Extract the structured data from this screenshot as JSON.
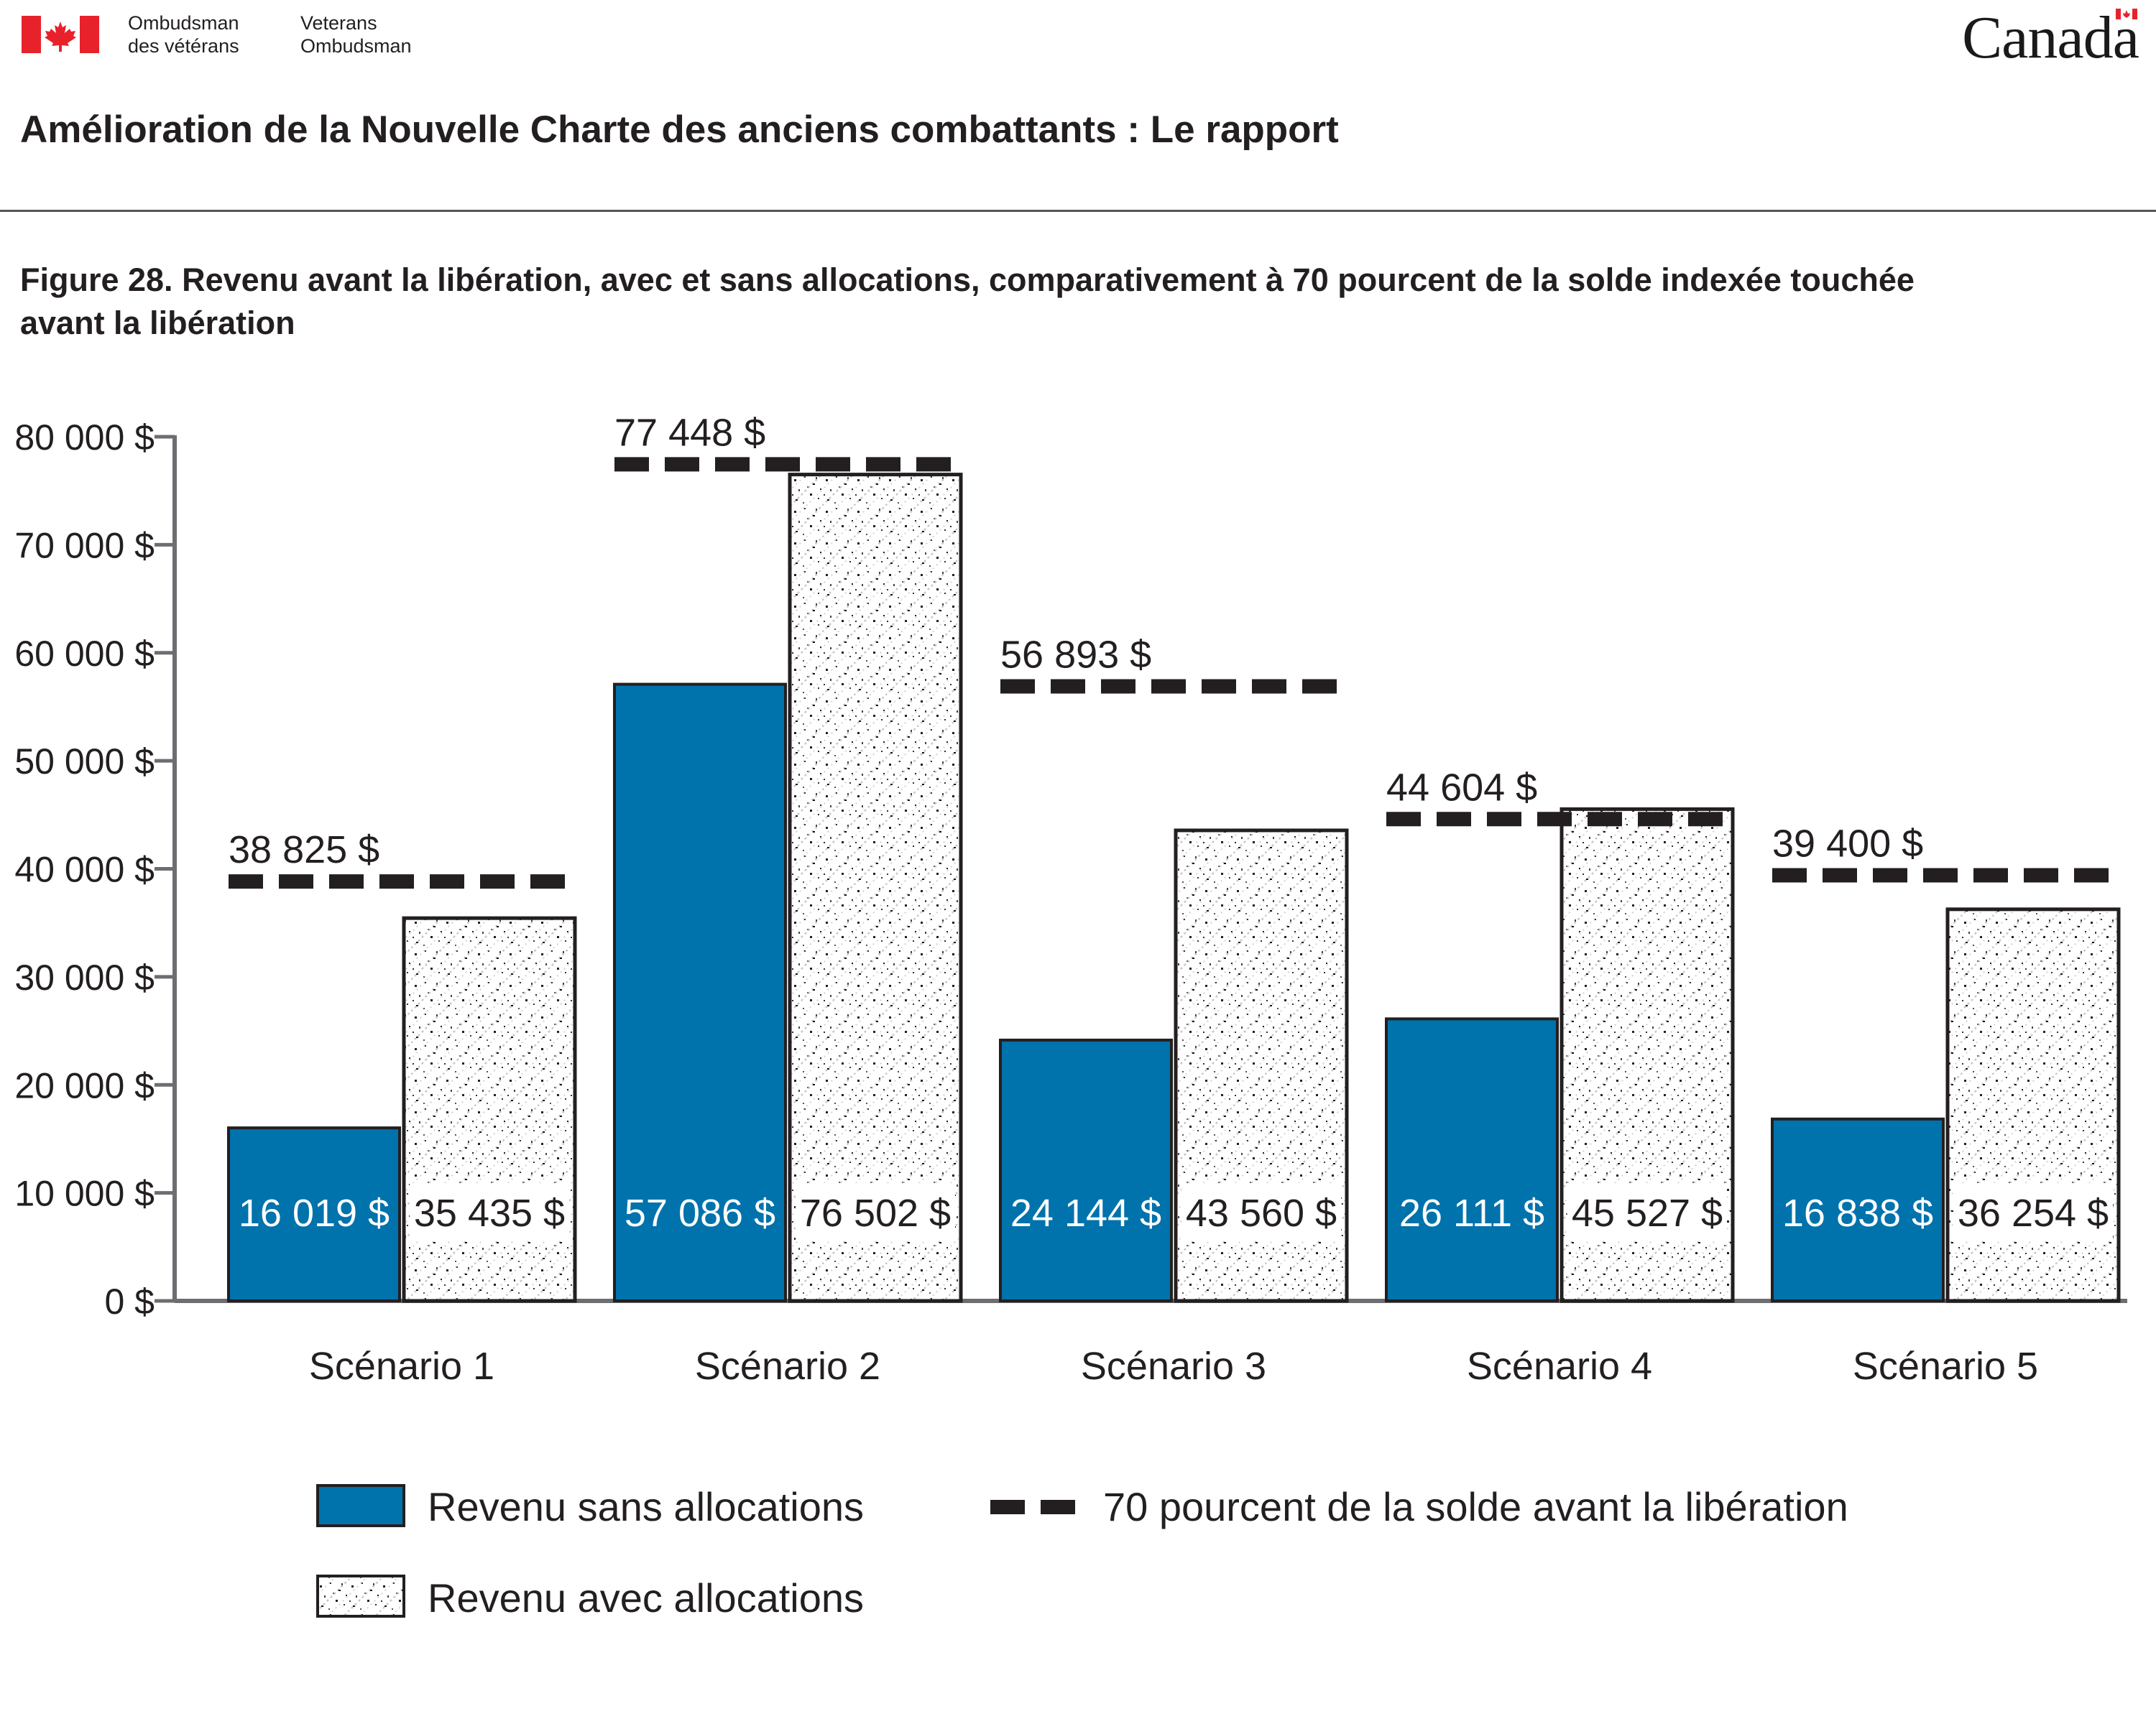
{
  "header": {
    "org_fr_line1": "Ombudsman",
    "org_fr_line2": "des vétérans",
    "org_en_line1": "Veterans",
    "org_en_line2": "Ombudsman",
    "wordmark": "Canada",
    "report_title": "Amélioration de la Nouvelle Charte des anciens combattants : Le rapport"
  },
  "figure_title": "Figure 28. Revenu avant la libération, avec et sans allocations, comparativement à 70 pourcent de la solde indexée touchée avant la libération",
  "colors": {
    "blue_bar": "#0072ac",
    "flag_red": "#e8222b",
    "axis": "#6d6e71",
    "text": "#231f20",
    "dash": "#231f20"
  },
  "chart_data": {
    "type": "bar",
    "categories": [
      "Scénario 1",
      "Scénario 2",
      "Scénario 3",
      "Scénario 4",
      "Scénario 5"
    ],
    "series": [
      {
        "name": "Revenu sans allocations",
        "style": "solid-blue",
        "values": [
          16019,
          57086,
          24144,
          26111,
          16838
        ],
        "labels": [
          "16 019 $",
          "57 086 $",
          "24 144 $",
          "26 111 $",
          "16 838 $"
        ]
      },
      {
        "name": "Revenu avec allocations",
        "style": "speckled-pattern",
        "values": [
          35435,
          76502,
          43560,
          45527,
          36254
        ],
        "labels": [
          "35 435 $",
          "76 502 $",
          "43 560 $",
          "45 527 $",
          "36 254 $"
        ]
      }
    ],
    "reference_line": {
      "name": "70 pourcent de la solde avant la libération",
      "style": "dashed",
      "values": [
        38825,
        77448,
        56893,
        44604,
        39400
      ],
      "labels": [
        "38 825 $",
        "77 448 $",
        "56 893 $",
        "44 604 $",
        "39 400 $"
      ]
    },
    "yticks": [
      0,
      10000,
      20000,
      30000,
      40000,
      50000,
      60000,
      70000,
      80000
    ],
    "ytick_labels": [
      "0 $",
      "10 000 $",
      "20 000 $",
      "30 000 $",
      "40 000 $",
      "50 000 $",
      "60 000 $",
      "70 000 $",
      "80 000 $"
    ],
    "ylim": [
      0,
      80000
    ],
    "grid": false,
    "legend_position": "bottom"
  }
}
